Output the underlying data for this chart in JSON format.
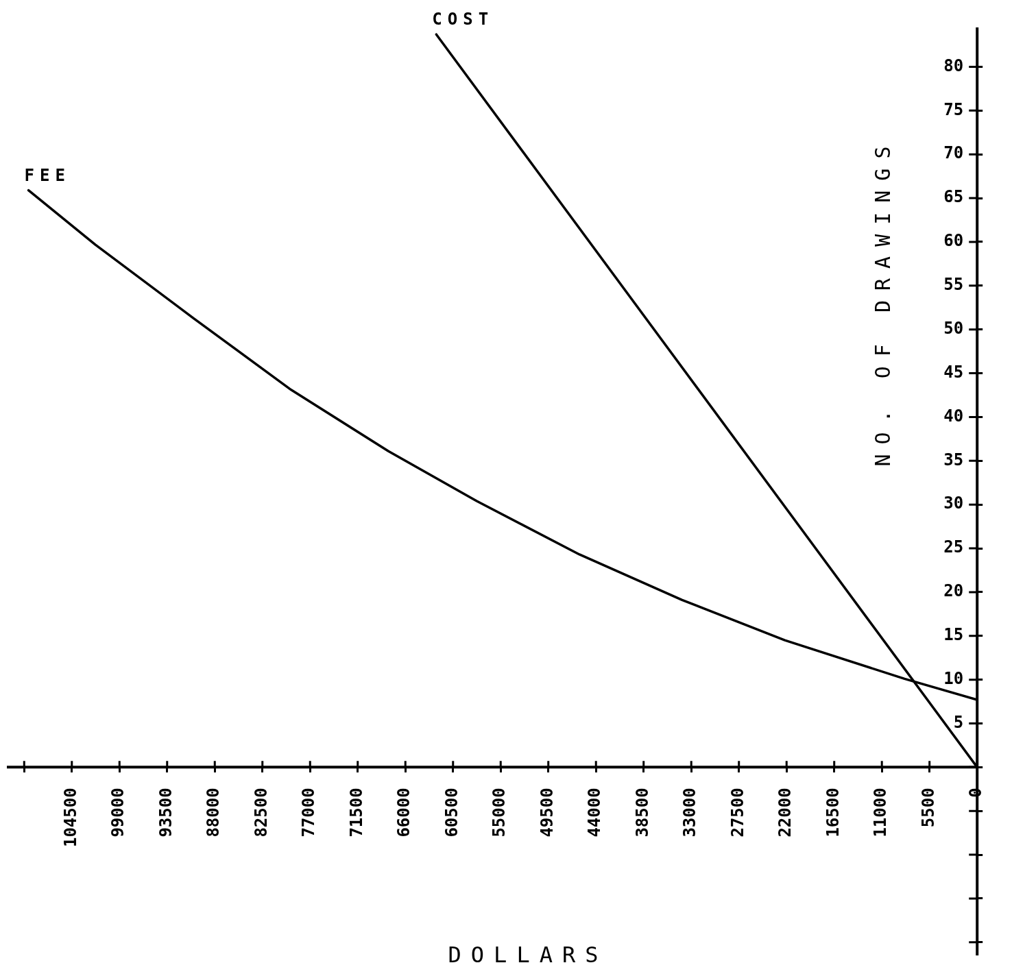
{
  "chart_data": {
    "type": "line",
    "xlabel": "DOLLARS",
    "ylabel": "NO. OF DRAWINGS",
    "series": [
      {
        "name": "FEE",
        "color": "#000000",
        "x": [
          109500,
          101800,
          90480,
          79180,
          67960,
          57770,
          45910,
          34060,
          22200,
          8380,
          0
        ],
        "values": [
          65.9,
          59.7,
          51.3,
          43.1,
          36.1,
          30.4,
          24.3,
          19.1,
          14.5,
          10.1,
          7.7
        ]
      },
      {
        "name": "COST",
        "color": "#000000",
        "x": [
          62430,
          0
        ],
        "values": [
          83.7,
          0
        ]
      }
    ],
    "xlim": [
      112000,
      0
    ],
    "xticks": [
      {
        "value": 110000,
        "label": null
      },
      104500,
      99000,
      93500,
      88000,
      82500,
      77000,
      71500,
      66000,
      60500,
      55000,
      49500,
      44000,
      38500,
      33000,
      27500,
      22000,
      16500,
      11000,
      5500,
      0
    ],
    "ylim": [
      -21.5,
      84.5
    ],
    "yticks": [
      {
        "value": -20,
        "label": null
      },
      {
        "value": -15,
        "label": null
      },
      {
        "value": -10,
        "label": null
      },
      {
        "value": -5,
        "label": null
      },
      {
        "value": 0,
        "label": null
      },
      5,
      10,
      15,
      20,
      25,
      30,
      35,
      40,
      45,
      50,
      55,
      60,
      65,
      70,
      75,
      80
    ],
    "grid": false,
    "legend": false,
    "marker": "none",
    "line_style": "solid"
  }
}
